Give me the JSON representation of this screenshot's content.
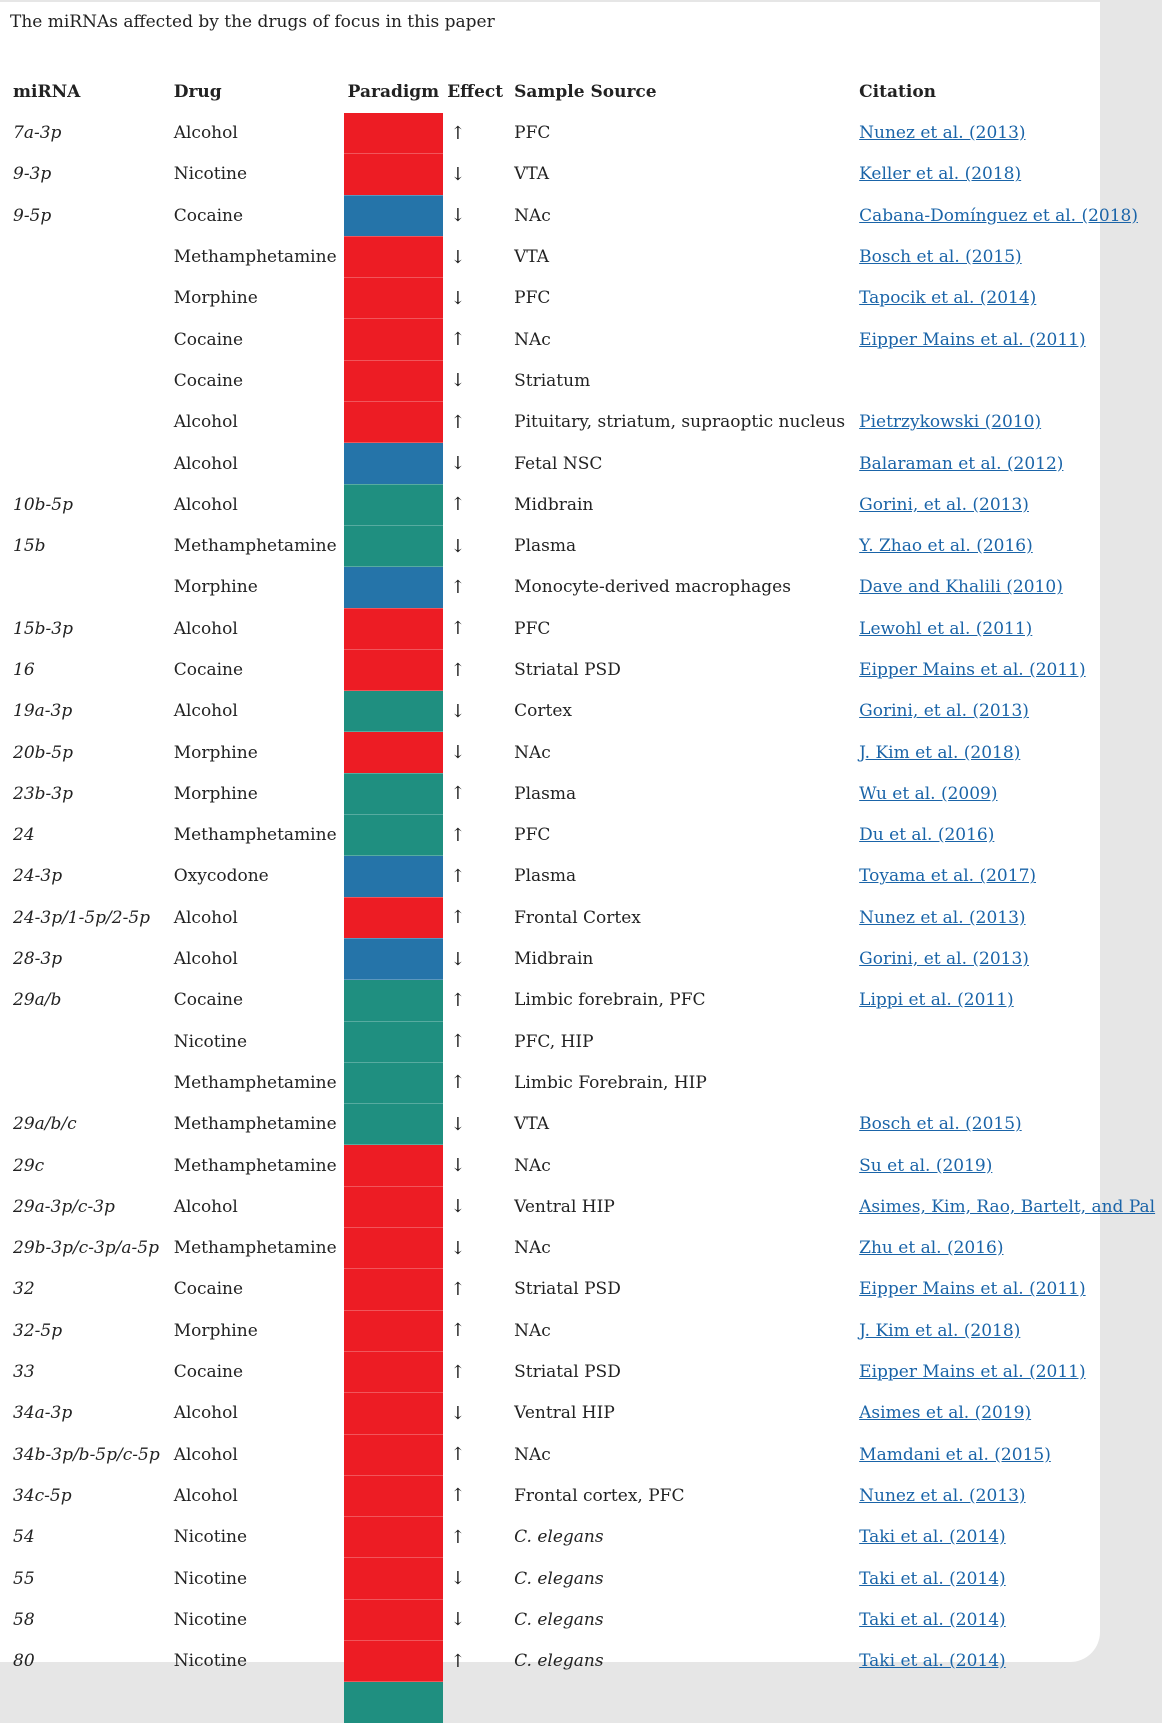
{
  "caption": "The miRNAs affected by the drugs of focus in this paper",
  "colors": {
    "red": "#ED1C24",
    "blue": "#2574A9",
    "teal": "#1F8F80",
    "link": "#1a64a8"
  },
  "headers": [
    "miRNA",
    "Drug",
    "Paradigm",
    "Effect",
    "Sample Source",
    "Citation"
  ],
  "rows": [
    {
      "mirna": "7a-3p",
      "drug": "Alcohol",
      "paradigm": "red",
      "effect": "↑",
      "source": "PFC",
      "citation": "Nunez et al. (2013)"
    },
    {
      "mirna": "9-3p",
      "drug": "Nicotine",
      "paradigm": "red",
      "effect": "↓",
      "source": "VTA",
      "citation": "Keller et al. (2018)"
    },
    {
      "mirna": "9-5p",
      "drug": "Cocaine",
      "paradigm": "blue",
      "effect": "↓",
      "source": "NAc",
      "citation": "Cabana-Domínguez et al. (2018)"
    },
    {
      "mirna": "",
      "drug": "Methamphetamine",
      "paradigm": "red",
      "effect": "↓",
      "source": "VTA",
      "citation": "Bosch et al. (2015)"
    },
    {
      "mirna": "",
      "drug": "Morphine",
      "paradigm": "red",
      "effect": "↓",
      "source": "PFC",
      "citation": "Tapocik et al. (2014)"
    },
    {
      "mirna": "",
      "drug": "Cocaine",
      "paradigm": "red",
      "effect": "↑",
      "source": "NAc",
      "citation": "Eipper Mains et al. (2011)"
    },
    {
      "mirna": "",
      "drug": "Cocaine",
      "paradigm": "red",
      "effect": "↓",
      "source": "Striatum",
      "citation": ""
    },
    {
      "mirna": "",
      "drug": "Alcohol",
      "paradigm": "red",
      "effect": "↑",
      "source": "Pituitary, striatum, supraoptic nucleus",
      "citation": "Pietrzykowski (2010)"
    },
    {
      "mirna": "",
      "drug": "Alcohol",
      "paradigm": "blue",
      "effect": "↓",
      "source": "Fetal NSC",
      "citation": "Balaraman et al. (2012)"
    },
    {
      "mirna": "10b-5p",
      "drug": "Alcohol",
      "paradigm": "teal",
      "effect": "↑",
      "source": "Midbrain",
      "citation": "Gorini, et al. (2013)"
    },
    {
      "mirna": "15b",
      "drug": "Methamphetamine",
      "paradigm": "teal",
      "effect": "↓",
      "source": "Plasma",
      "citation": "Y. Zhao et al. (2016)"
    },
    {
      "mirna": "",
      "drug": "Morphine",
      "paradigm": "blue",
      "effect": "↑",
      "source": "Monocyte-derived macrophages",
      "citation": "Dave and Khalili (2010)"
    },
    {
      "mirna": "15b-3p",
      "drug": "Alcohol",
      "paradigm": "red",
      "effect": "↑",
      "source": "PFC",
      "citation": "Lewohl et al. (2011)"
    },
    {
      "mirna": "16",
      "drug": "Cocaine",
      "paradigm": "red",
      "effect": "↑",
      "source": "Striatal PSD",
      "citation": "Eipper Mains et al. (2011)"
    },
    {
      "mirna": "19a-3p",
      "drug": "Alcohol",
      "paradigm": "teal",
      "effect": "↓",
      "source": "Cortex",
      "citation": "Gorini, et al. (2013)"
    },
    {
      "mirna": "20b-5p",
      "drug": "Morphine",
      "paradigm": "red",
      "effect": "↓",
      "source": "NAc",
      "citation": "J. Kim et al. (2018)"
    },
    {
      "mirna": "23b-3p",
      "drug": "Morphine",
      "paradigm": "teal",
      "effect": "↑",
      "source": "Plasma",
      "citation": "Wu et al. (2009)"
    },
    {
      "mirna": "24",
      "drug": "Methamphetamine",
      "paradigm": "teal",
      "effect": "↑",
      "source": "PFC",
      "citation": "Du et al. (2016)"
    },
    {
      "mirna": "24-3p",
      "drug": "Oxycodone",
      "paradigm": "blue",
      "effect": "↑",
      "source": "Plasma",
      "citation": "Toyama et al. (2017)"
    },
    {
      "mirna": "24-3p/1-5p/2-5p",
      "drug": "Alcohol",
      "paradigm": "red",
      "effect": "↑",
      "source": "Frontal Cortex",
      "citation": "Nunez et al. (2013)"
    },
    {
      "mirna": "28-3p",
      "drug": "Alcohol",
      "paradigm": "blue",
      "effect": "↓",
      "source": "Midbrain",
      "citation": "Gorini, et al. (2013)"
    },
    {
      "mirna": "29a/b",
      "drug": "Cocaine",
      "paradigm": "teal",
      "effect": "↑",
      "source": "Limbic forebrain, PFC",
      "citation": "Lippi et al. (2011)"
    },
    {
      "mirna": "",
      "drug": "Nicotine",
      "paradigm": "teal",
      "effect": "↑",
      "source": "PFC, HIP",
      "citation": ""
    },
    {
      "mirna": "",
      "drug": "Methamphetamine",
      "paradigm": "teal",
      "effect": "↑",
      "source": "Limbic Forebrain, HIP",
      "citation": ""
    },
    {
      "mirna": "29a/b/c",
      "drug": "Methamphetamine",
      "paradigm": "teal",
      "effect": "↓",
      "source": "VTA",
      "citation": "Bosch et al. (2015)"
    },
    {
      "mirna": "29c",
      "drug": "Methamphetamine",
      "paradigm": "red",
      "effect": "↓",
      "source": "NAc",
      "citation": "Su et al. (2019)"
    },
    {
      "mirna": "29a-3p/c-3p",
      "drug": "Alcohol",
      "paradigm": "red",
      "effect": "↓",
      "source": "Ventral HIP",
      "citation": "Asimes, Kim, Rao, Bartelt, and Pal"
    },
    {
      "mirna": "29b-3p/c-3p/a-5p",
      "drug": "Methamphetamine",
      "paradigm": "red",
      "effect": "↓",
      "source": "NAc",
      "citation": "Zhu et al. (2016)"
    },
    {
      "mirna": "32",
      "drug": "Cocaine",
      "paradigm": "red",
      "effect": "↑",
      "source": "Striatal PSD",
      "citation": "Eipper Mains et al. (2011)"
    },
    {
      "mirna": "32-5p",
      "drug": "Morphine",
      "paradigm": "red",
      "effect": "↑",
      "source": "NAc",
      "citation": "J. Kim et al. (2018)"
    },
    {
      "mirna": "33",
      "drug": "Cocaine",
      "paradigm": "red",
      "effect": "↑",
      "source": "Striatal PSD",
      "citation": "Eipper Mains et al. (2011)"
    },
    {
      "mirna": "34a-3p",
      "drug": "Alcohol",
      "paradigm": "red",
      "effect": "↓",
      "source": "Ventral HIP",
      "citation": "Asimes et al. (2019)"
    },
    {
      "mirna": "34b-3p/b-5p/c-5p",
      "drug": "Alcohol",
      "paradigm": "red",
      "effect": "↑",
      "source": "NAc",
      "citation": "Mamdani et al. (2015)"
    },
    {
      "mirna": "34c-5p",
      "drug": "Alcohol",
      "paradigm": "red",
      "effect": "↑",
      "source": "Frontal cortex, PFC",
      "citation": "Nunez et al. (2013)"
    },
    {
      "mirna": "54",
      "drug": "Nicotine",
      "paradigm": "red",
      "effect": "↑",
      "source": "C. elegans",
      "source_italic": true,
      "citation": "Taki et al. (2014)"
    },
    {
      "mirna": "55",
      "drug": "Nicotine",
      "paradigm": "red",
      "effect": "↓",
      "source": "C. elegans",
      "source_italic": true,
      "citation": "Taki et al. (2014)"
    },
    {
      "mirna": "58",
      "drug": "Nicotine",
      "paradigm": "red",
      "effect": "↓",
      "source": "C. elegans",
      "source_italic": true,
      "citation": "Taki et al. (2014)"
    },
    {
      "mirna": "80",
      "drug": "Nicotine",
      "paradigm": "red",
      "effect": "↑",
      "source": "C. elegans",
      "source_italic": true,
      "citation": "Taki et al. (2014)"
    },
    {
      "mirna": "",
      "drug": "",
      "paradigm": "teal",
      "effect": "",
      "source": "",
      "citation": ""
    }
  ]
}
